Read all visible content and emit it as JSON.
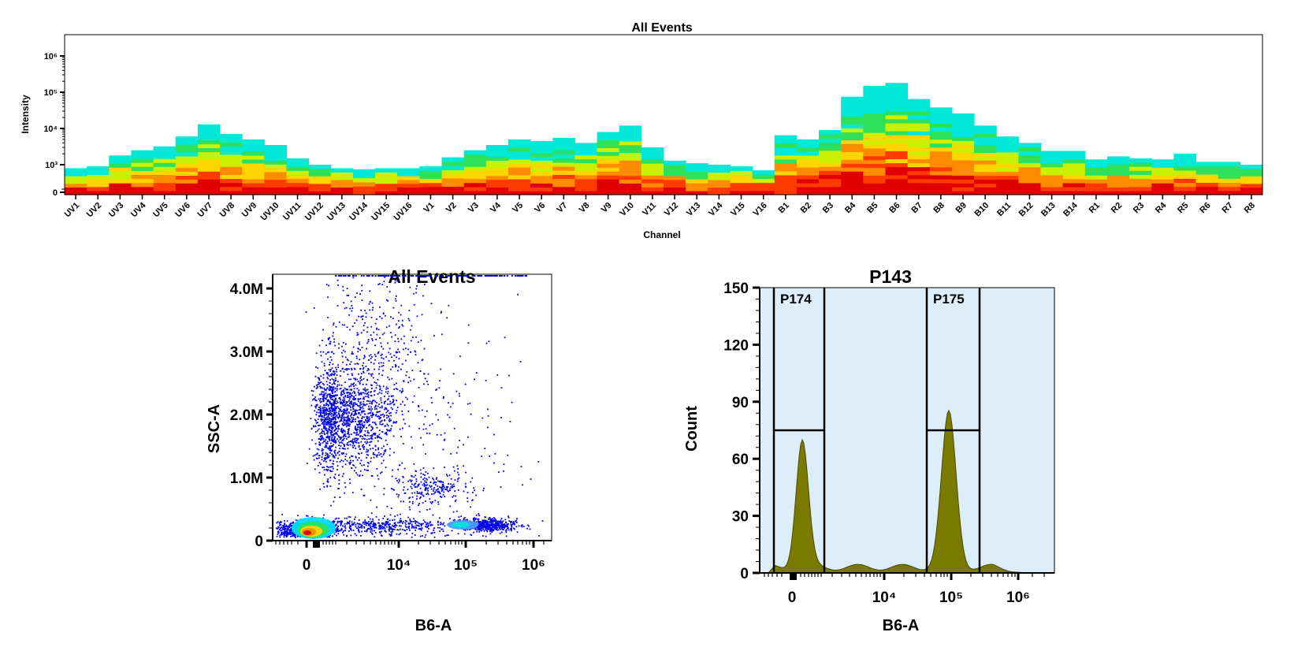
{
  "colors": {
    "heat": [
      "#e00000",
      "#ff3a00",
      "#ff8c00",
      "#ffd400",
      "#c8f000",
      "#2ee05a",
      "#00e8d8"
    ],
    "dots": "#0000ee",
    "gate_bg": "#ddeefa",
    "hist_fill": "#7a7a00",
    "axis": "#000000"
  },
  "chart_data": [
    {
      "type": "heatmap",
      "title": "All Events",
      "xlabel": "Channel",
      "ylabel": "Intensity",
      "y_scale": "log",
      "y_tick_labels": [
        "10⁶",
        "10⁵",
        "10⁴",
        "10³",
        "0"
      ],
      "categories": [
        "UV1",
        "UV2",
        "UV3",
        "UV4",
        "UV5",
        "UV6",
        "UV7",
        "UV8",
        "UV9",
        "UV10",
        "UV11",
        "UV12",
        "UV13",
        "UV14",
        "UV15",
        "UV16",
        "V1",
        "V2",
        "V3",
        "V4",
        "V5",
        "V6",
        "V7",
        "V8",
        "V9",
        "V10",
        "V11",
        "V12",
        "V13",
        "V14",
        "V15",
        "V16",
        "B1",
        "B2",
        "B3",
        "B4",
        "B5",
        "B6",
        "B7",
        "B8",
        "B9",
        "B10",
        "B11",
        "B12",
        "B13",
        "B14",
        "R1",
        "R2",
        "R3",
        "R4",
        "R5",
        "R6",
        "R7",
        "R8"
      ],
      "max_values": [
        800,
        900,
        1800,
        2500,
        3200,
        6000,
        13000,
        7000,
        5000,
        3500,
        1500,
        1000,
        800,
        750,
        800,
        800,
        900,
        1600,
        2500,
        3500,
        5000,
        4500,
        5500,
        4000,
        8000,
        12000,
        3000,
        1300,
        1100,
        1000,
        900,
        700,
        6500,
        5000,
        9000,
        75000,
        150000,
        180000,
        65000,
        38000,
        26000,
        12000,
        6000,
        4000,
        2400,
        2400,
        1400,
        1700,
        1500,
        1400,
        2000,
        1200,
        1200,
        1000
      ],
      "grid": false
    },
    {
      "type": "scatter",
      "title": "All Events",
      "xlabel": "B6-A",
      "ylabel": "SSC-A",
      "x_scale": "biexponential",
      "x_tick_labels": [
        "0",
        "10⁴",
        "10⁵",
        "10⁶"
      ],
      "y_tick_labels": [
        "4.0M",
        "3.0M",
        "2.0M",
        "1.0M",
        "0"
      ],
      "ylim": [
        0,
        4200000
      ],
      "populations": [
        {
          "x": 300,
          "y": 180000,
          "count": 1000
        },
        {
          "x": 5000,
          "y": 1900000,
          "count": 1600
        },
        {
          "x": 110000,
          "y": 250000,
          "count": 550
        },
        {
          "x": 30000,
          "y": 800000,
          "count": 250
        },
        {
          "x": 8000,
          "y": 250000,
          "count": 600
        }
      ],
      "grid": false
    },
    {
      "type": "area",
      "title": "P143",
      "xlabel": "B6-A",
      "ylabel": "Count",
      "x_scale": "biexponential",
      "x_tick_labels": [
        "0",
        "10⁴",
        "10⁵",
        "10⁶"
      ],
      "y_ticks": [
        0,
        30,
        60,
        90,
        120,
        150
      ],
      "ylim": [
        0,
        150
      ],
      "gates": [
        {
          "name": "P174",
          "x_range": [
            -1000,
            2000
          ],
          "level": 75
        },
        {
          "name": "P175",
          "x_range": [
            40000,
            260000
          ],
          "level": 75
        }
      ],
      "peaks": [
        {
          "x": 500,
          "count": 67
        },
        {
          "x": 105000,
          "count": 81
        }
      ],
      "grid": false
    }
  ]
}
